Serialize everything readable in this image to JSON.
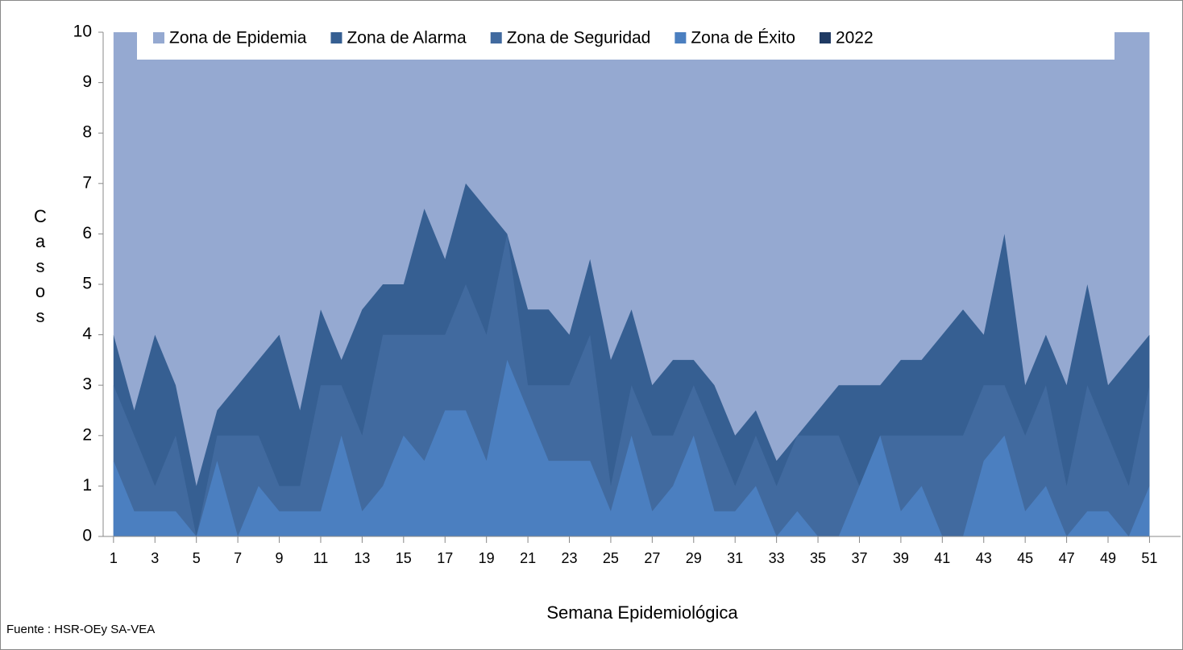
{
  "chart_data": {
    "type": "area",
    "x_label": "Semana  Epidemiológica",
    "y_label": "Casos",
    "source": "Fuente : HSR-OEy SA-VEA",
    "x": [
      1,
      2,
      3,
      4,
      5,
      6,
      7,
      8,
      9,
      10,
      11,
      12,
      13,
      14,
      15,
      16,
      17,
      18,
      19,
      20,
      21,
      22,
      23,
      24,
      25,
      26,
      27,
      28,
      29,
      30,
      31,
      32,
      33,
      34,
      35,
      36,
      37,
      38,
      39,
      40,
      41,
      42,
      43,
      44,
      45,
      46,
      47,
      48,
      49,
      50,
      51
    ],
    "xlim": [
      0.5,
      52.5
    ],
    "xticks": [
      1,
      3,
      5,
      7,
      9,
      11,
      13,
      15,
      17,
      19,
      21,
      23,
      25,
      27,
      29,
      31,
      33,
      35,
      37,
      39,
      41,
      43,
      45,
      47,
      49,
      51
    ],
    "ylim": [
      0,
      10
    ],
    "yticks": [
      0,
      1,
      2,
      3,
      4,
      5,
      6,
      7,
      8,
      9,
      10
    ],
    "legend": "top",
    "series": [
      {
        "name": "Zona de Epidemia",
        "color": "#95a9d1",
        "values": [
          10,
          10,
          10,
          10,
          10,
          10,
          10,
          10,
          10,
          10,
          10,
          10,
          10,
          10,
          10,
          10,
          10,
          10,
          10,
          10,
          10,
          10,
          10,
          10,
          10,
          10,
          10,
          10,
          10,
          10,
          10,
          10,
          10,
          10,
          10,
          10,
          10,
          10,
          10,
          10,
          10,
          10,
          10,
          10,
          10,
          10,
          10,
          10,
          10,
          10,
          10
        ]
      },
      {
        "name": "Zona de Alarma",
        "color": "#365f92",
        "values": [
          4,
          2.5,
          4,
          3,
          1,
          2.5,
          3,
          3.5,
          4,
          2.5,
          4.5,
          3.5,
          4.5,
          5,
          5,
          6.5,
          5.5,
          7,
          6.5,
          6,
          4.5,
          4.5,
          4,
          5.5,
          3.5,
          4.5,
          3,
          3.5,
          3.5,
          3,
          2,
          2.5,
          1.5,
          2,
          2.5,
          3,
          3,
          3,
          3.5,
          3.5,
          4,
          4.5,
          4,
          6,
          3,
          4,
          3,
          5,
          3,
          3.5,
          4
        ]
      },
      {
        "name": "Zona de Seguridad",
        "color": "#416a9f",
        "values": [
          3,
          2,
          1,
          2,
          0,
          2,
          2,
          2,
          1,
          1,
          3,
          3,
          2,
          4,
          4,
          4,
          4,
          5,
          4,
          6,
          3,
          3,
          3,
          4,
          1,
          3,
          2,
          2,
          3,
          2,
          1,
          2,
          1,
          2,
          2,
          2,
          1,
          2,
          2,
          2,
          2,
          2,
          3,
          3,
          2,
          3,
          1,
          3,
          2,
          1,
          3
        ]
      },
      {
        "name": "Zona de Éxito",
        "color": "#4b7fc0",
        "values": [
          1.5,
          0.5,
          0.5,
          0.5,
          0,
          1.5,
          0,
          1,
          0.5,
          0.5,
          0.5,
          2,
          0.5,
          1,
          2,
          1.5,
          2.5,
          2.5,
          1.5,
          3.5,
          2.5,
          1.5,
          1.5,
          1.5,
          0.5,
          2,
          0.5,
          1,
          2,
          0.5,
          0.5,
          1,
          0,
          0.5,
          0,
          0,
          1,
          2,
          0.5,
          1,
          0,
          0,
          1.5,
          2,
          0.5,
          1,
          0,
          0.5,
          0.5,
          0,
          1
        ]
      },
      {
        "name": "2022",
        "color": "#1f3a63",
        "values": [
          null,
          null,
          null,
          null,
          null,
          null,
          null,
          null,
          null,
          null,
          null,
          null,
          null,
          null,
          null,
          null,
          null,
          null,
          null,
          null,
          null,
          null,
          null,
          null,
          null,
          null,
          null,
          null,
          null,
          null,
          null,
          null,
          null,
          null,
          null,
          null,
          null,
          null,
          null,
          null,
          null,
          null,
          null,
          null,
          null,
          null,
          null,
          null,
          null,
          null,
          null
        ]
      }
    ]
  }
}
